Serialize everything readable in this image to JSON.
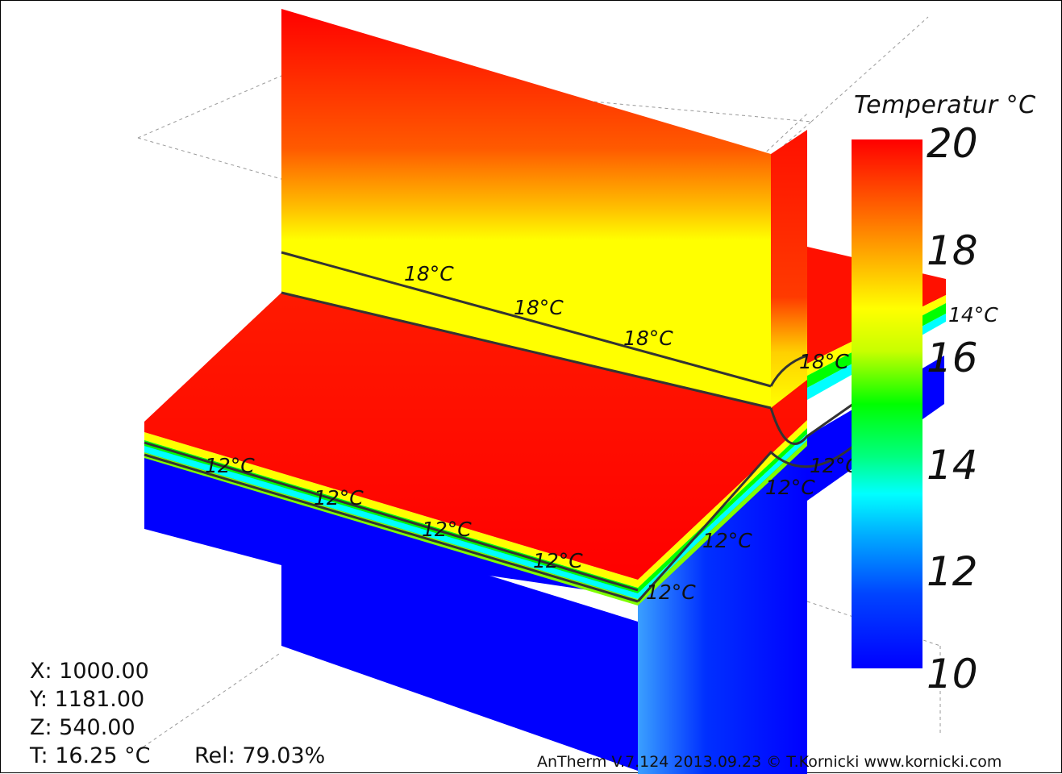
{
  "legend": {
    "title": "Temperatur °C",
    "ticks": [
      "20",
      "18",
      "16",
      "14",
      "12",
      "10"
    ],
    "range": [
      10,
      20
    ]
  },
  "isolines": {
    "label_18": "18°C",
    "label_14": "14°C",
    "label_12": "12°C"
  },
  "readout": {
    "x": "X: 1000.00",
    "y": "Y: 1181.00",
    "z": "Z: 540.00",
    "t": "T: 16.25 °C",
    "rel": "Rel: 79.03%"
  },
  "footer": "AnTherm V.7.124 2013.09.23 © T.Kornicki www.kornicki.com",
  "colors": {
    "hot": "#ff0000",
    "warm": "#ffff00",
    "mid": "#00ff00",
    "cool": "#00ffff",
    "cold": "#0000ff"
  }
}
